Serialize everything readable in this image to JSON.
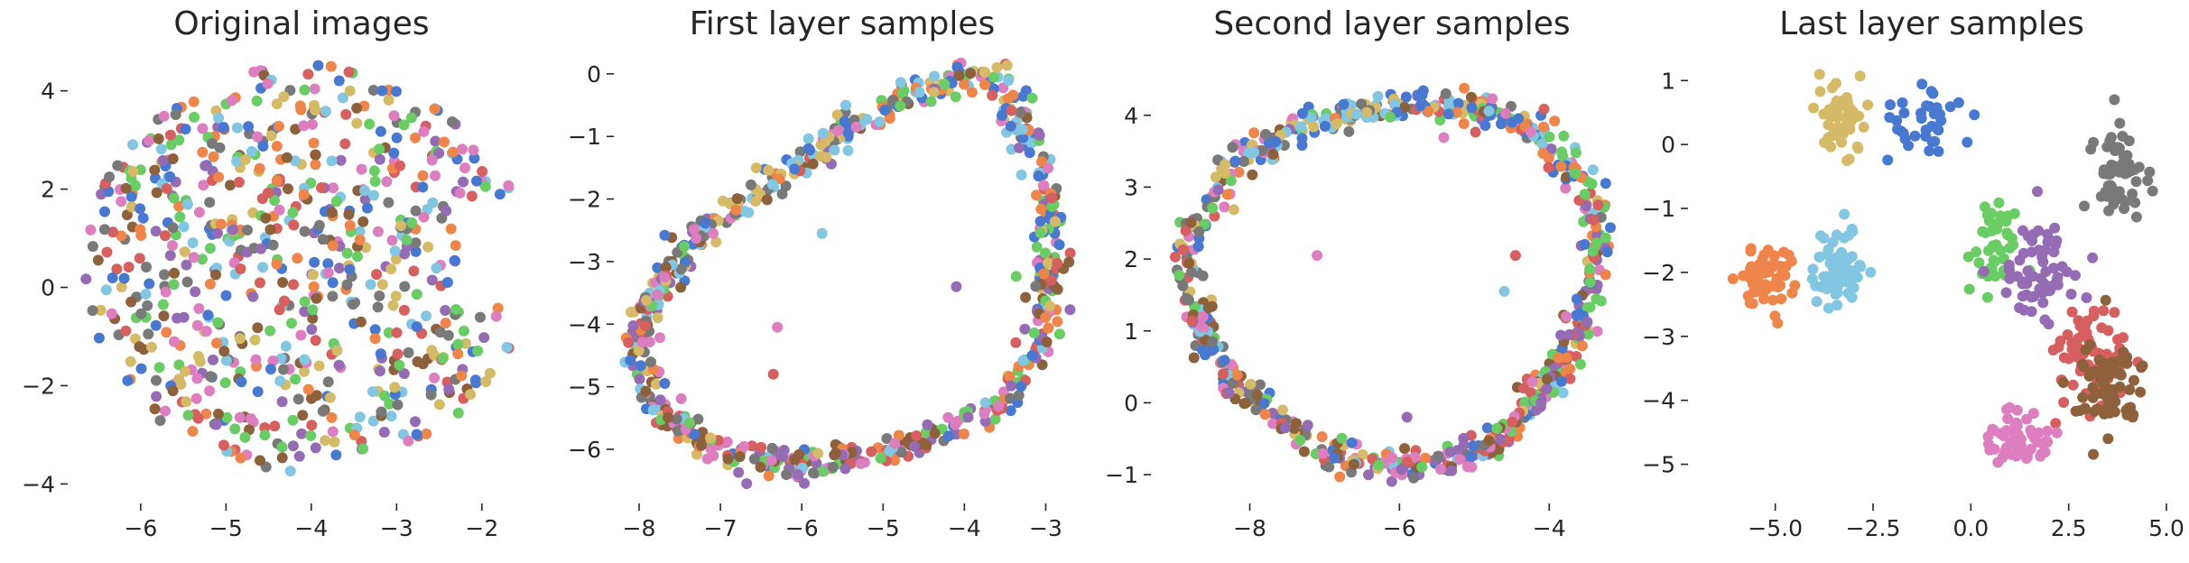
{
  "palette": [
    "#4878d0",
    "#ee854a",
    "#6acc64",
    "#d65f5f",
    "#956cb4",
    "#8c613c",
    "#dc7ec0",
    "#797979",
    "#d5bb67",
    "#82c6e2"
  ],
  "chart_data": [
    {
      "type": "scatter",
      "title": "Original images",
      "xlabel": "",
      "ylabel": "",
      "xlim": [
        -6.75,
        -1.3
      ],
      "ylim": [
        -4.25,
        4.6
      ],
      "xticks": [
        -6,
        -5,
        -4,
        -3,
        -2
      ],
      "yticks": [
        -4,
        -2,
        0,
        2,
        4
      ],
      "grid": false,
      "shape": "disk",
      "shape_params": {
        "cx": -4.05,
        "cy": 0.4,
        "rx": 2.6,
        "ry": 4.15
      },
      "count": 700,
      "description": "Points spread uniformly over a disk-like region, all 10 classes mixed"
    },
    {
      "type": "scatter",
      "title": "First layer samples",
      "xlabel": "",
      "ylabel": "",
      "xlim": [
        -8.2,
        -2.65
      ],
      "ylim": [
        -6.75,
        0.2
      ],
      "xticks": [
        -8,
        -7,
        -6,
        -5,
        -4,
        -3
      ],
      "yticks": [
        -6,
        -5,
        -4,
        -3,
        -2,
        -1,
        0
      ],
      "grid": false,
      "shape": "ring",
      "ring_path": [
        [
          -4.2,
          -0.1
        ],
        [
          -3.55,
          -0.05
        ],
        [
          -3.25,
          -1.0
        ],
        [
          -2.95,
          -2.0
        ],
        [
          -2.95,
          -3.0
        ],
        [
          -3.1,
          -4.3
        ],
        [
          -3.5,
          -5.3
        ],
        [
          -4.4,
          -5.8
        ],
        [
          -5.2,
          -6.1
        ],
        [
          -6.1,
          -6.3
        ],
        [
          -7.0,
          -6.05
        ],
        [
          -7.7,
          -5.4
        ],
        [
          -8.05,
          -4.4
        ],
        [
          -7.8,
          -3.4
        ],
        [
          -7.2,
          -2.5
        ],
        [
          -6.5,
          -1.8
        ],
        [
          -5.8,
          -1.3
        ],
        [
          -5.2,
          -0.6
        ]
      ],
      "count": 700,
      "outliers": [
        [
          -6.3,
          -4.05
        ],
        [
          -6.35,
          -4.8
        ],
        [
          -5.75,
          -2.55
        ],
        [
          -4.1,
          -3.4
        ]
      ]
    },
    {
      "type": "scatter",
      "title": "Second layer samples",
      "xlabel": "",
      "ylabel": "",
      "xlim": [
        -9.2,
        -3.05
      ],
      "ylim": [
        -1.3,
        4.75
      ],
      "xticks": [
        -8,
        -6,
        -4
      ],
      "yticks": [
        -1,
        0,
        1,
        2,
        3,
        4
      ],
      "grid": false,
      "shape": "ring",
      "ring_path": [
        [
          -6.0,
          4.15
        ],
        [
          -5.0,
          4.1
        ],
        [
          -4.2,
          3.8
        ],
        [
          -3.5,
          3.0
        ],
        [
          -3.35,
          2.0
        ],
        [
          -3.6,
          1.0
        ],
        [
          -4.2,
          0.0
        ],
        [
          -5.0,
          -0.75
        ],
        [
          -6.0,
          -0.9
        ],
        [
          -7.2,
          -0.6
        ],
        [
          -8.2,
          0.2
        ],
        [
          -8.75,
          1.2
        ],
        [
          -8.8,
          2.3
        ],
        [
          -8.2,
          3.3
        ],
        [
          -7.3,
          3.9
        ]
      ],
      "count": 700,
      "outliers": [
        [
          -7.1,
          2.05
        ],
        [
          -4.45,
          2.05
        ],
        [
          -4.6,
          1.55
        ],
        [
          -5.9,
          -0.2
        ]
      ]
    },
    {
      "type": "scatter",
      "title": "Last layer samples",
      "xlabel": "",
      "ylabel": "",
      "xlim": [
        -7.0,
        5.0
      ],
      "ylim": [
        -5.5,
        1.3
      ],
      "xticks": [
        -5.0,
        -2.5,
        0.0,
        2.5,
        5.0
      ],
      "xtick_labels": [
        "−5.0",
        "−2.5",
        "0.0",
        "2.5",
        "5.0"
      ],
      "yticks": [
        -5,
        -4,
        -3,
        -2,
        -1,
        0,
        1
      ],
      "grid": false,
      "shape": "clusters",
      "clusters": [
        {
          "class": 0,
          "label": "blue",
          "cx": -1.2,
          "cy": 0.3,
          "sx": 0.9,
          "sy": 0.45,
          "n": 35
        },
        {
          "class": 1,
          "label": "orange",
          "cx": -5.3,
          "cy": -2.1,
          "sx": 0.55,
          "sy": 0.45,
          "n": 60
        },
        {
          "class": 2,
          "label": "green",
          "cx": 0.6,
          "cy": -1.6,
          "sx": 0.45,
          "sy": 0.6,
          "n": 45
        },
        {
          "class": 3,
          "label": "red",
          "cx": 3.0,
          "cy": -3.3,
          "sx": 1.0,
          "sy": 0.65,
          "n": 70
        },
        {
          "class": 4,
          "label": "purple",
          "cx": 1.7,
          "cy": -2.0,
          "sx": 0.8,
          "sy": 0.7,
          "n": 60
        },
        {
          "class": 5,
          "label": "brown",
          "cx": 3.6,
          "cy": -3.8,
          "sx": 0.7,
          "sy": 0.6,
          "n": 70
        },
        {
          "class": 6,
          "label": "pink",
          "cx": 1.2,
          "cy": -4.7,
          "sx": 0.7,
          "sy": 0.4,
          "n": 55
        },
        {
          "class": 7,
          "label": "gray",
          "cx": 3.8,
          "cy": -0.5,
          "sx": 0.6,
          "sy": 0.6,
          "n": 60
        },
        {
          "class": 8,
          "label": "yellow",
          "cx": -3.3,
          "cy": 0.4,
          "sx": 0.5,
          "sy": 0.5,
          "n": 55
        },
        {
          "class": 9,
          "label": "light-blue",
          "cx": -3.4,
          "cy": -1.9,
          "sx": 0.6,
          "sy": 0.6,
          "n": 70
        }
      ]
    }
  ],
  "titles": [
    "Original images",
    "First layer samples",
    "Second layer samples",
    "Last layer samples"
  ]
}
